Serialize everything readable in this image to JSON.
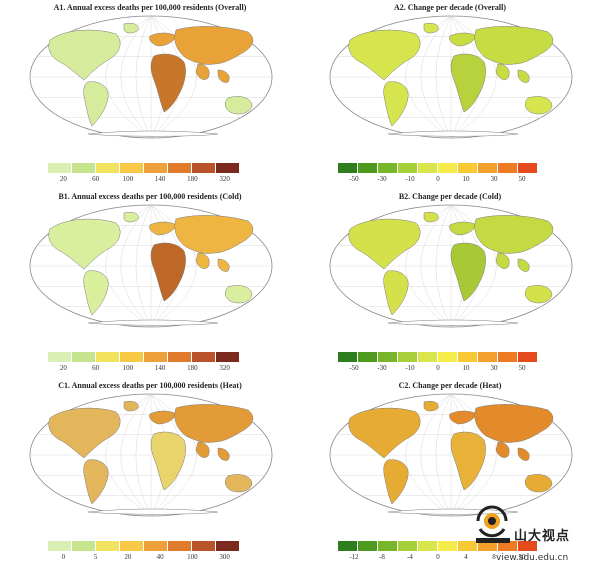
{
  "panels": [
    {
      "id": "A1",
      "title": "A1. Annual excess deaths per 100,000 residents (Overall)",
      "palette": "burden",
      "ticks": [
        "20",
        "60",
        "100",
        "140",
        "180",
        "320"
      ],
      "colors": [
        "#d9efb4",
        "#c6e48c",
        "#f1e35d",
        "#f7c944",
        "#eea13a",
        "#e07b2d",
        "#b8532a",
        "#7b2a1e"
      ],
      "highlights": {
        "africa": "#c8772a",
        "asia": "#e8a237",
        "americas": "#d6ec9c"
      }
    },
    {
      "id": "A2",
      "title": "A2. Change per decade (Overall)",
      "palette": "change",
      "ticks": [
        "-50",
        "-30",
        "-10",
        "0",
        "10",
        "30",
        "50"
      ],
      "colors": [
        "#2e7d1e",
        "#4e9a1e",
        "#79b52a",
        "#a6cf3a",
        "#d8e64c",
        "#f4ec4a",
        "#f7c934",
        "#f3a02c",
        "#ef7a24",
        "#e44a1c"
      ],
      "highlights": {
        "africa": "#b7d23c",
        "asia": "#c7dc43",
        "americas": "#d6e54e"
      }
    },
    {
      "id": "B1",
      "title": "B1. Annual excess deaths per 100,000 residents (Cold)",
      "palette": "burden",
      "ticks": [
        "20",
        "60",
        "100",
        "140",
        "180",
        "320"
      ],
      "colors": [
        "#d9efb4",
        "#c6e48c",
        "#f1e35d",
        "#f7c944",
        "#eea13a",
        "#e07b2d",
        "#b8532a",
        "#7b2a1e"
      ],
      "highlights": {
        "africa": "#bd6728",
        "asia": "#eeb540",
        "americas": "#d9ef9e"
      }
    },
    {
      "id": "B2",
      "title": "B2. Change per decade (Cold)",
      "palette": "change",
      "ticks": [
        "-50",
        "-30",
        "-10",
        "0",
        "10",
        "30",
        "50"
      ],
      "colors": [
        "#2e7d1e",
        "#4e9a1e",
        "#79b52a",
        "#a6cf3a",
        "#d8e64c",
        "#f4ec4a",
        "#f7c934",
        "#f3a02c",
        "#ef7a24",
        "#e44a1c"
      ],
      "highlights": {
        "africa": "#a8c935",
        "asia": "#c4d942",
        "americas": "#d4e14a"
      }
    },
    {
      "id": "C1",
      "title": "C1. Annual excess deaths per 100,000 residents (Heat)",
      "palette": "heat",
      "ticks": [
        "0",
        "5",
        "20",
        "40",
        "100",
        "300"
      ],
      "colors": [
        "#d9efb4",
        "#c6e48c",
        "#f1e35d",
        "#f7c944",
        "#eea13a",
        "#e07b2d",
        "#b8532a",
        "#7b2a1e"
      ],
      "highlights": {
        "africa": "#e9d46b",
        "asia": "#e39b38",
        "americas": "#e4b65b"
      }
    },
    {
      "id": "C2",
      "title": "C2. Change per decade (Heat)",
      "palette": "change",
      "ticks": [
        "-12",
        "-8",
        "-4",
        "0",
        "4",
        "8",
        "50"
      ],
      "colors": [
        "#2e7d1e",
        "#4e9a1e",
        "#79b52a",
        "#a6cf3a",
        "#d8e64c",
        "#f4ec4a",
        "#f7c934",
        "#f3a02c",
        "#ef7a24",
        "#e44a1c"
      ],
      "highlights": {
        "africa": "#e8b238",
        "asia": "#e38a2b",
        "americas": "#e6ab33"
      }
    }
  ],
  "watermark": {
    "brand": "山大视点",
    "url": "view.sdu.edu.cn"
  }
}
